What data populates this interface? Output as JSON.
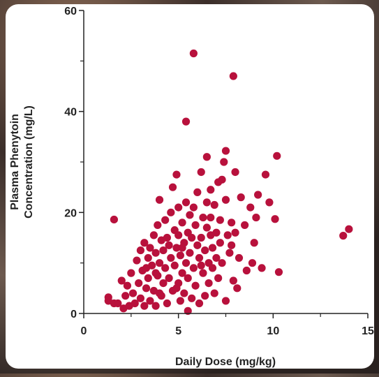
{
  "chart_data": {
    "type": "scatter",
    "x_label": "Daily Dose (mg/kg)",
    "y_label": [
      "Plasma Phenytoin",
      "Concentration (mg/L)"
    ],
    "xlim": [
      0,
      15
    ],
    "ylim": [
      0,
      60
    ],
    "xticks": [
      0,
      5,
      10,
      15
    ],
    "yticks": [
      0,
      20,
      40,
      60
    ],
    "x_minor_ticks": [
      2.5,
      7.5,
      12.5
    ],
    "y_minor_ticks": [
      10,
      30,
      50
    ],
    "series": [
      {
        "color": "#b8113c",
        "x": [
          1.3,
          1.3,
          1.6,
          1.8,
          2.0,
          2.1,
          2.2,
          2.3,
          2.4,
          2.5,
          2.6,
          2.7,
          2.8,
          2.9,
          3.0,
          3.0,
          3.1,
          3.2,
          3.2,
          3.3,
          3.4,
          3.4,
          3.5,
          3.5,
          3.6,
          3.7,
          3.7,
          3.8,
          3.8,
          3.9,
          3.9,
          4.0,
          4.0,
          4.1,
          4.1,
          4.2,
          4.2,
          4.3,
          4.3,
          4.4,
          4.4,
          4.5,
          4.5,
          4.6,
          4.6,
          4.7,
          4.7,
          4.8,
          4.8,
          4.9,
          4.9,
          5.0,
          5.0,
          5.0,
          5.1,
          5.1,
          5.2,
          5.2,
          5.3,
          5.3,
          5.4,
          5.4,
          5.5,
          5.5,
          5.5,
          5.6,
          5.6,
          5.7,
          5.7,
          5.8,
          5.8,
          5.9,
          5.9,
          6.0,
          6.0,
          6.1,
          6.1,
          6.2,
          6.2,
          6.3,
          6.3,
          6.4,
          6.4,
          6.5,
          6.5,
          6.6,
          6.6,
          6.7,
          6.7,
          6.8,
          6.8,
          6.9,
          6.9,
          7.0,
          7.0,
          7.1,
          7.1,
          7.2,
          7.2,
          7.3,
          7.4,
          7.5,
          7.5,
          7.6,
          7.7,
          7.8,
          7.9,
          8.0,
          8.0,
          8.2,
          8.3,
          8.5,
          8.6,
          8.8,
          9.0,
          9.2,
          9.4,
          9.6,
          9.8,
          10.1,
          10.2,
          10.3,
          13.7,
          14.0,
          5.8,
          7.9,
          5.4,
          7.5,
          6.5,
          1.6,
          4.9,
          3.8,
          6.7,
          8.1,
          7.3,
          8.9,
          5.2,
          4.0,
          6.2,
          3.3,
          7.8,
          9.1
        ],
        "values": [
          3.2,
          2.5,
          2.0,
          2.0,
          6.5,
          1.0,
          3.5,
          5.5,
          1.5,
          8.0,
          4.0,
          2.0,
          10.5,
          6.0,
          12.5,
          3.0,
          8.5,
          14.0,
          1.5,
          5.0,
          11.0,
          7.0,
          13.0,
          2.5,
          9.5,
          15.5,
          4.5,
          12.0,
          1.5,
          17.5,
          7.5,
          22.5,
          10.0,
          14.5,
          3.5,
          12.5,
          6.0,
          18.5,
          9.0,
          15.0,
          2.0,
          13.5,
          7.0,
          20.0,
          11.0,
          25.0,
          4.5,
          16.5,
          9.5,
          27.5,
          13.0,
          21.0,
          6.0,
          15.5,
          11.5,
          2.5,
          18.0,
          8.0,
          14.0,
          4.0,
          22.0,
          10.0,
          0.5,
          16.0,
          7.0,
          19.5,
          12.0,
          3.0,
          15.0,
          21.0,
          9.0,
          17.5,
          5.5,
          13.5,
          24.0,
          11.0,
          2.0,
          28.0,
          15.0,
          8.0,
          19.0,
          12.5,
          3.5,
          17.0,
          22.0,
          10.0,
          6.0,
          15.5,
          19.0,
          9.0,
          13.0,
          21.5,
          4.0,
          16.0,
          11.0,
          26.0,
          7.0,
          18.5,
          14.0,
          10.0,
          30.0,
          22.5,
          2.5,
          15.5,
          12.0,
          18.0,
          6.5,
          28.0,
          16.0,
          11.0,
          23.0,
          17.5,
          8.5,
          21.0,
          14.0,
          23.5,
          9.0,
          27.5,
          22.0,
          18.7,
          31.2,
          8.2,
          15.4,
          16.7,
          51.5,
          47.0,
          38.0,
          32.2,
          31.0,
          18.6,
          5.0,
          8.0,
          24.5,
          5.0,
          26.5,
          10.0,
          13.0,
          4.0,
          9.5,
          9.0,
          13.5,
          19.0
        ]
      }
    ]
  }
}
